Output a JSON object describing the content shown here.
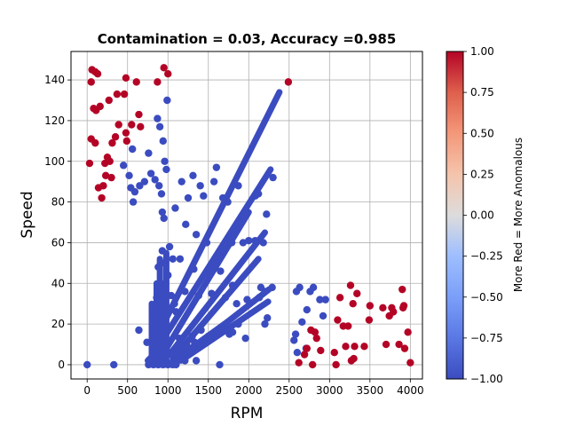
{
  "chart_data": {
    "type": "scatter",
    "title": "Contamination = 0.03, Accuracy =0.985",
    "xlabel": "RPM",
    "ylabel": "Speed",
    "xlim": [
      -200,
      4150
    ],
    "ylim": [
      -7,
      154
    ],
    "xticks": [
      0,
      500,
      1000,
      1500,
      2000,
      2500,
      3000,
      3500,
      4000
    ],
    "yticks": [
      0,
      20,
      40,
      60,
      80,
      100,
      120,
      140
    ],
    "grid": true,
    "colormap": "coolwarm",
    "colorbar": {
      "label": "More Red = More Anomalous",
      "range": [
        -1.0,
        1.0
      ],
      "ticks": [
        "1.00",
        "0.75",
        "0.50",
        "0.25",
        "0.00",
        "−0.25",
        "−0.50",
        "−0.75",
        "−1.00"
      ],
      "low_color": "#3b4cc0",
      "high_color": "#b40426"
    },
    "series": [
      {
        "label_value": -1,
        "color": "#3b4cc0",
        "points": [
          [
            0,
            0
          ],
          [
            330,
            0
          ],
          [
            450,
            98
          ],
          [
            520,
            93
          ],
          [
            560,
            106
          ],
          [
            540,
            87
          ],
          [
            590,
            85
          ],
          [
            570,
            80
          ],
          [
            650,
            88
          ],
          [
            710,
            90
          ],
          [
            760,
            104
          ],
          [
            790,
            94
          ],
          [
            840,
            91
          ],
          [
            890,
            88
          ],
          [
            870,
            121
          ],
          [
            900,
            117
          ],
          [
            940,
            110
          ],
          [
            960,
            100
          ],
          [
            980,
            96
          ],
          [
            990,
            130
          ],
          [
            930,
            75
          ],
          [
            950,
            72
          ],
          [
            920,
            84
          ],
          [
            1170,
            90
          ],
          [
            1250,
            82
          ],
          [
            1310,
            93
          ],
          [
            1400,
            88
          ],
          [
            1440,
            83
          ],
          [
            1570,
            90
          ],
          [
            1600,
            97
          ],
          [
            1680,
            82
          ],
          [
            1740,
            80
          ],
          [
            1870,
            88
          ],
          [
            1950,
            75
          ],
          [
            2080,
            83
          ],
          [
            2120,
            84
          ],
          [
            2220,
            74
          ],
          [
            2300,
            92
          ],
          [
            1090,
            77
          ],
          [
            1220,
            69
          ],
          [
            1350,
            64
          ],
          [
            1480,
            60
          ],
          [
            1650,
            56
          ],
          [
            1790,
            60
          ],
          [
            1930,
            60
          ],
          [
            2000,
            61
          ],
          [
            2080,
            61
          ],
          [
            2180,
            60
          ],
          [
            1150,
            52
          ],
          [
            1320,
            47
          ],
          [
            1500,
            45
          ],
          [
            1650,
            46
          ],
          [
            1800,
            39
          ],
          [
            2150,
            38
          ],
          [
            2200,
            36
          ],
          [
            2290,
            38
          ],
          [
            1210,
            36
          ],
          [
            1380,
            34
          ],
          [
            1540,
            35
          ],
          [
            1710,
            33
          ],
          [
            1850,
            30
          ],
          [
            1980,
            32
          ],
          [
            2130,
            33
          ],
          [
            2230,
            23
          ],
          [
            2590,
            36
          ],
          [
            2630,
            38
          ],
          [
            2720,
            27
          ],
          [
            2760,
            36
          ],
          [
            2800,
            38
          ],
          [
            2880,
            32
          ],
          [
            2950,
            32
          ],
          [
            2920,
            24
          ],
          [
            2580,
            15
          ],
          [
            2660,
            21
          ],
          [
            2560,
            12
          ],
          [
            2710,
            8
          ],
          [
            2600,
            6
          ],
          [
            640,
            17
          ],
          [
            740,
            11
          ],
          [
            820,
            6
          ],
          [
            930,
            9
          ],
          [
            1010,
            6
          ],
          [
            1080,
            4
          ],
          [
            1140,
            13
          ],
          [
            1210,
            2
          ],
          [
            1250,
            7
          ],
          [
            1330,
            11
          ],
          [
            1410,
            17
          ],
          [
            1500,
            14
          ],
          [
            1580,
            14
          ],
          [
            1690,
            18
          ],
          [
            1760,
            15
          ],
          [
            1800,
            16
          ],
          [
            1870,
            20
          ],
          [
            1960,
            13
          ],
          [
            2200,
            20
          ],
          [
            1100,
            0
          ],
          [
            1270,
            6
          ],
          [
            1350,
            2
          ],
          [
            1640,
            0
          ],
          [
            760,
            0
          ],
          [
            820,
            0
          ],
          [
            880,
            0
          ],
          [
            940,
            0
          ],
          [
            1000,
            0
          ],
          [
            1060,
            0
          ],
          [
            1120,
            2
          ],
          [
            1170,
            5
          ],
          [
            1230,
            10
          ],
          [
            1300,
            14
          ],
          [
            880,
            30
          ],
          [
            900,
            40
          ],
          [
            920,
            50
          ],
          [
            880,
            48
          ],
          [
            930,
            56
          ],
          [
            900,
            26
          ],
          [
            950,
            22
          ],
          [
            970,
            18
          ],
          [
            860,
            33
          ],
          [
            840,
            20
          ],
          [
            900,
            14
          ],
          [
            860,
            10
          ],
          [
            920,
            8
          ],
          [
            950,
            4
          ],
          [
            1000,
            44
          ],
          [
            1020,
            58
          ],
          [
            1060,
            52
          ],
          [
            1040,
            34
          ],
          [
            1080,
            30
          ],
          [
            1100,
            26
          ]
        ]
      },
      {
        "label_value": 1,
        "color": "#b40426",
        "points": [
          [
            60,
            145
          ],
          [
            100,
            144
          ],
          [
            130,
            143
          ],
          [
            50,
            139
          ],
          [
            80,
            126
          ],
          [
            110,
            125
          ],
          [
            160,
            127
          ],
          [
            270,
            130
          ],
          [
            370,
            133
          ],
          [
            460,
            133
          ],
          [
            480,
            141
          ],
          [
            610,
            139
          ],
          [
            870,
            139
          ],
          [
            950,
            146
          ],
          [
            1000,
            143
          ],
          [
            2490,
            139
          ],
          [
            50,
            111
          ],
          [
            100,
            109
          ],
          [
            30,
            99
          ],
          [
            140,
            87
          ],
          [
            180,
            82
          ],
          [
            200,
            88
          ],
          [
            230,
            93
          ],
          [
            220,
            99
          ],
          [
            250,
            102
          ],
          [
            280,
            100
          ],
          [
            300,
            92
          ],
          [
            310,
            109
          ],
          [
            350,
            112
          ],
          [
            390,
            118
          ],
          [
            480,
            114
          ],
          [
            490,
            110
          ],
          [
            550,
            118
          ],
          [
            640,
            123
          ],
          [
            660,
            117
          ],
          [
            2620,
            1
          ],
          [
            2690,
            5
          ],
          [
            2720,
            8
          ],
          [
            2790,
            0
          ],
          [
            2770,
            17
          ],
          [
            2820,
            16
          ],
          [
            2840,
            13
          ],
          [
            2890,
            7
          ],
          [
            3060,
            6
          ],
          [
            3080,
            0
          ],
          [
            3100,
            22
          ],
          [
            3130,
            33
          ],
          [
            3170,
            19
          ],
          [
            3200,
            9
          ],
          [
            3230,
            19
          ],
          [
            3270,
            2
          ],
          [
            3260,
            39
          ],
          [
            3290,
            30
          ],
          [
            3300,
            3
          ],
          [
            3310,
            9
          ],
          [
            3340,
            35
          ],
          [
            3430,
            9
          ],
          [
            3490,
            22
          ],
          [
            3500,
            29
          ],
          [
            3660,
            28
          ],
          [
            3700,
            10
          ],
          [
            3740,
            24
          ],
          [
            3770,
            28
          ],
          [
            3790,
            26
          ],
          [
            3860,
            10
          ],
          [
            3900,
            37
          ],
          [
            3910,
            28
          ],
          [
            3920,
            29
          ],
          [
            3930,
            8
          ],
          [
            3970,
            16
          ],
          [
            4000,
            1
          ]
        ]
      }
    ],
    "bands": [
      {
        "label_value": -1,
        "from": [
          880,
          15
        ],
        "to": [
          2380,
          134
        ]
      },
      {
        "label_value": -1,
        "from": [
          930,
          12
        ],
        "to": [
          2270,
          96
        ]
      },
      {
        "label_value": -1,
        "from": [
          980,
          8
        ],
        "to": [
          2000,
          75
        ]
      },
      {
        "label_value": -1,
        "from": [
          1020,
          5
        ],
        "to": [
          2200,
          65
        ]
      },
      {
        "label_value": -1,
        "from": [
          1060,
          3
        ],
        "to": [
          2120,
          52
        ]
      },
      {
        "label_value": -1,
        "from": [
          1120,
          2
        ],
        "to": [
          2250,
          37
        ]
      },
      {
        "label_value": -1,
        "from": [
          1160,
          2
        ],
        "to": [
          2240,
          31
        ]
      },
      {
        "label_value": -1,
        "from": [
          1000,
          0
        ],
        "to": [
          1700,
          20
        ]
      },
      {
        "label_value": -1,
        "from": [
          860,
          0
        ],
        "to": [
          860,
          40
        ]
      },
      {
        "label_value": -1,
        "from": [
          900,
          0
        ],
        "to": [
          900,
          52
        ]
      },
      {
        "label_value": -1,
        "from": [
          950,
          0
        ],
        "to": [
          950,
          40
        ]
      },
      {
        "label_value": -1,
        "from": [
          980,
          0
        ],
        "to": [
          980,
          55
        ]
      },
      {
        "label_value": -1,
        "from": [
          800,
          0
        ],
        "to": [
          800,
          30
        ]
      },
      {
        "label_value": -1,
        "from": [
          820,
          0
        ],
        "to": [
          1050,
          0
        ]
      },
      {
        "label_value": -1,
        "from": [
          750,
          2
        ],
        "to": [
          1000,
          12
        ]
      }
    ]
  }
}
